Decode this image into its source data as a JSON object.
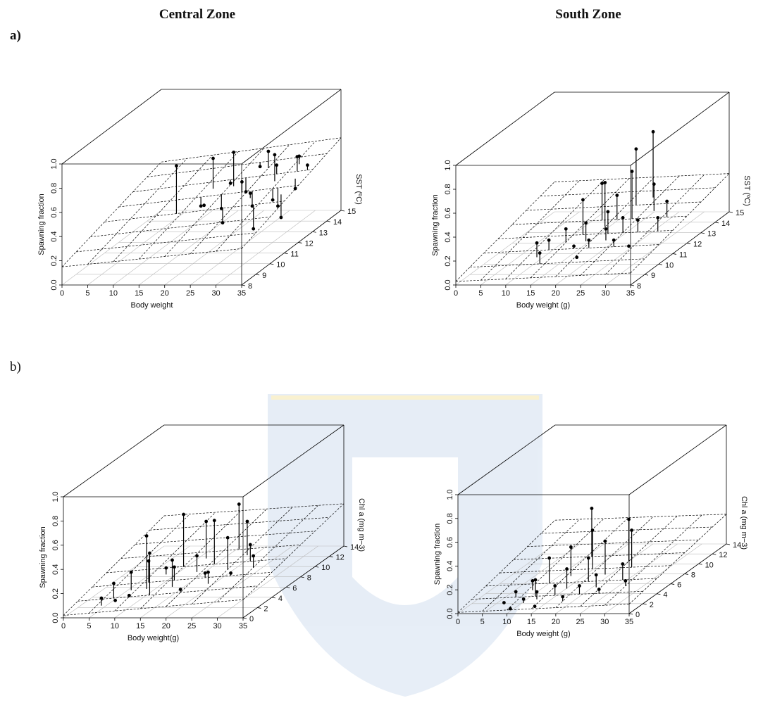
{
  "chart_data": [
    {
      "type": "scatter3d",
      "title": "Central Zone",
      "panel": "a)",
      "xlabel": "Body weight",
      "zlabel": "Spawning fraction",
      "ylabel": "SST (ºC)",
      "xlim": [
        0,
        35
      ],
      "xticks": [
        0,
        5,
        10,
        15,
        20,
        25,
        30,
        35
      ],
      "ylim": [
        8,
        15
      ],
      "yticks": [
        8,
        9,
        10,
        11,
        12,
        13,
        14,
        15
      ],
      "zlim": [
        0,
        1
      ],
      "zticks": [
        {
          "value": 0,
          "label": "0.0"
        },
        {
          "value": 0.2,
          "label": "0.2"
        },
        {
          "value": 0.4,
          "label": "0.4"
        },
        {
          "value": 0.6,
          "label": "0.6"
        },
        {
          "value": 0.8,
          "label": "0.8"
        },
        {
          "value": 1,
          "label": "1.0"
        }
      ],
      "surface_z": [
        [
          0.15,
          0.3
        ],
        [
          0.4,
          0.6
        ]
      ],
      "x": [
        14,
        16,
        17,
        18,
        19,
        20,
        21,
        22,
        23,
        24,
        25,
        26,
        27,
        28,
        29,
        29,
        30,
        31,
        31,
        32,
        33,
        33,
        34,
        22
      ],
      "y": [
        11,
        12,
        12.5,
        11.5,
        13,
        12,
        12.5,
        13,
        11,
        12,
        13.5,
        12,
        11.5,
        13,
        12.5,
        11,
        12,
        13.5,
        12,
        13,
        12.5,
        11.5,
        13,
        14
      ],
      "values": [
        0.72,
        0.3,
        0.65,
        0.35,
        0.4,
        0.28,
        0.7,
        0.33,
        0.25,
        0.5,
        0.62,
        0.3,
        0.45,
        0.55,
        0.68,
        0.2,
        0.35,
        0.58,
        0.3,
        0.62,
        0.4,
        0.25,
        0.55,
        0.45
      ]
    },
    {
      "type": "scatter3d",
      "title": "South Zone",
      "xlabel": "Body weight (g)",
      "zlabel": "Spawning fraction",
      "ylabel": "SST (ºC)",
      "xlim": [
        0,
        35
      ],
      "xticks": [
        0,
        5,
        10,
        15,
        20,
        25,
        30,
        35
      ],
      "ylim": [
        8,
        15
      ],
      "yticks": [
        8,
        9,
        10,
        11,
        12,
        13,
        14,
        15
      ],
      "zlim": [
        0,
        1
      ],
      "zticks": [
        {
          "value": 0,
          "label": "0.0"
        },
        {
          "value": 0.2,
          "label": "0.2"
        },
        {
          "value": 0.4,
          "label": "0.4"
        },
        {
          "value": 0.6,
          "label": "0.6"
        },
        {
          "value": 0.8,
          "label": "0.8"
        },
        {
          "value": 1,
          "label": "1.0"
        }
      ],
      "surface_z": [
        [
          0.03,
          0.1
        ],
        [
          0.25,
          0.32
        ]
      ],
      "x": [
        12,
        13,
        14,
        15,
        17,
        18,
        18,
        19,
        20,
        20,
        21,
        21,
        22,
        22,
        23,
        24,
        25,
        26,
        27,
        28,
        29,
        31,
        32,
        24
      ],
      "y": [
        9.5,
        10,
        9,
        10.5,
        11,
        10,
        12,
        10.5,
        11.5,
        9.5,
        12,
        10,
        11,
        13,
        10.5,
        12,
        11,
        10,
        12.5,
        11,
        10,
        12,
        11,
        13.5
      ],
      "values": [
        0.22,
        0.2,
        0.18,
        0.25,
        0.45,
        0.15,
        0.5,
        0.3,
        0.55,
        0.1,
        0.4,
        0.2,
        0.35,
        0.7,
        0.25,
        0.6,
        0.3,
        0.2,
        0.45,
        0.28,
        0.15,
        0.35,
        0.3,
        0.8
      ]
    },
    {
      "type": "scatter3d",
      "panel": "b)",
      "xlabel": "Body weight(g)",
      "zlabel": "Spawning fraction",
      "ylabel": "Chl a (mg m−3)",
      "xlim": [
        0,
        35
      ],
      "xticks": [
        0,
        5,
        10,
        15,
        20,
        25,
        30,
        35
      ],
      "ylim": [
        0,
        14
      ],
      "yticks": [
        0,
        2,
        4,
        6,
        8,
        10,
        12,
        14
      ],
      "zlim": [
        0,
        1
      ],
      "zticks": [
        {
          "value": 0,
          "label": "0.0"
        },
        {
          "value": 0.2,
          "label": "0.2"
        },
        {
          "value": 0.4,
          "label": "0.4"
        },
        {
          "value": 0.6,
          "label": "0.6"
        },
        {
          "value": 0.8,
          "label": "0.8"
        },
        {
          "value": 1,
          "label": "1.0"
        }
      ],
      "surface_z": [
        [
          0.02,
          0.15
        ],
        [
          0.25,
          0.35
        ]
      ],
      "x": [
        6,
        7,
        8,
        9,
        10,
        11,
        12,
        13,
        14,
        15,
        16,
        17,
        18,
        19,
        20,
        21,
        22,
        23,
        24,
        25,
        26,
        27,
        28,
        30
      ],
      "y": [
        1,
        2,
        1.5,
        3,
        2,
        4,
        3,
        5,
        2,
        6,
        4,
        3,
        7,
        5,
        2,
        6,
        4,
        8,
        3,
        5,
        7,
        4,
        6,
        5
      ],
      "values": [
        0.12,
        0.2,
        0.08,
        0.25,
        0.1,
        0.3,
        0.55,
        0.2,
        0.45,
        0.6,
        0.25,
        0.35,
        0.5,
        0.3,
        0.15,
        0.55,
        0.2,
        0.6,
        0.25,
        0.45,
        0.5,
        0.2,
        0.35,
        0.3
      ]
    },
    {
      "type": "scatter3d",
      "xlabel": "Body weight (g)",
      "zlabel": "Spawning fraction",
      "ylabel": "Chl a (mg m−3)",
      "xlim": [
        0,
        35
      ],
      "xticks": [
        0,
        5,
        10,
        15,
        20,
        25,
        30,
        35
      ],
      "ylim": [
        0,
        14
      ],
      "yticks": [
        0,
        2,
        4,
        6,
        8,
        10,
        12,
        14
      ],
      "zlim": [
        0,
        1
      ],
      "zticks": [
        {
          "value": 0,
          "label": "0.0"
        },
        {
          "value": 0.2,
          "label": "0.2"
        },
        {
          "value": 0.4,
          "label": "0.4"
        },
        {
          "value": 0.6,
          "label": "0.6"
        },
        {
          "value": 0.8,
          "label": "0.8"
        },
        {
          "value": 1,
          "label": "1.0"
        }
      ],
      "surface_z": [
        [
          0.01,
          0.08
        ],
        [
          0.2,
          0.25
        ]
      ],
      "x": [
        8,
        9,
        10,
        11,
        12,
        13,
        13,
        14,
        15,
        16,
        17,
        18,
        19,
        20,
        21,
        22,
        23,
        24,
        25,
        26,
        27,
        28,
        30,
        16
      ],
      "y": [
        1,
        2,
        0.5,
        3,
        1,
        2,
        4,
        1.5,
        0.5,
        5,
        2,
        3,
        6,
        1,
        4,
        2,
        5,
        3,
        7,
        2,
        6,
        4,
        3,
        8
      ],
      "values": [
        0.05,
        0.1,
        0.02,
        0.15,
        0.08,
        0.2,
        0.3,
        0.12,
        0.04,
        0.35,
        0.15,
        0.25,
        0.45,
        0.1,
        0.3,
        0.15,
        0.4,
        0.2,
        0.5,
        0.12,
        0.45,
        0.25,
        0.15,
        0.55
      ]
    }
  ]
}
